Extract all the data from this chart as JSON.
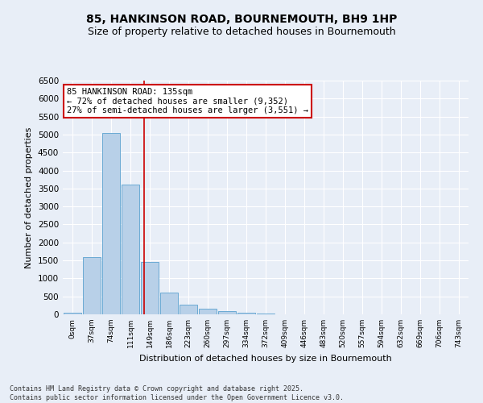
{
  "title": "85, HANKINSON ROAD, BOURNEMOUTH, BH9 1HP",
  "subtitle": "Size of property relative to detached houses in Bournemouth",
  "xlabel": "Distribution of detached houses by size in Bournemouth",
  "ylabel": "Number of detached properties",
  "categories": [
    "0sqm",
    "37sqm",
    "74sqm",
    "111sqm",
    "149sqm",
    "186sqm",
    "223sqm",
    "260sqm",
    "297sqm",
    "334sqm",
    "372sqm",
    "409sqm",
    "446sqm",
    "483sqm",
    "520sqm",
    "557sqm",
    "594sqm",
    "632sqm",
    "669sqm",
    "706sqm",
    "743sqm"
  ],
  "bar_values": [
    50,
    1600,
    5050,
    3600,
    1450,
    600,
    280,
    150,
    100,
    50,
    20,
    10,
    5,
    2,
    1,
    0,
    0,
    0,
    0,
    0,
    0
  ],
  "bar_color": "#b8d0e8",
  "bar_edge_color": "#6aaad4",
  "property_line_x": 3.72,
  "property_line_color": "#cc0000",
  "ylim": [
    0,
    6500
  ],
  "yticks": [
    0,
    500,
    1000,
    1500,
    2000,
    2500,
    3000,
    3500,
    4000,
    4500,
    5000,
    5500,
    6000,
    6500
  ],
  "annotation_title": "85 HANKINSON ROAD: 135sqm",
  "annotation_line1": "← 72% of detached houses are smaller (9,352)",
  "annotation_line2": "27% of semi-detached houses are larger (3,551) →",
  "annotation_box_color": "#cc0000",
  "footer_line1": "Contains HM Land Registry data © Crown copyright and database right 2025.",
  "footer_line2": "Contains public sector information licensed under the Open Government Licence v3.0.",
  "background_color": "#e8eef7",
  "grid_color": "#ffffff",
  "title_fontsize": 10,
  "subtitle_fontsize": 9
}
